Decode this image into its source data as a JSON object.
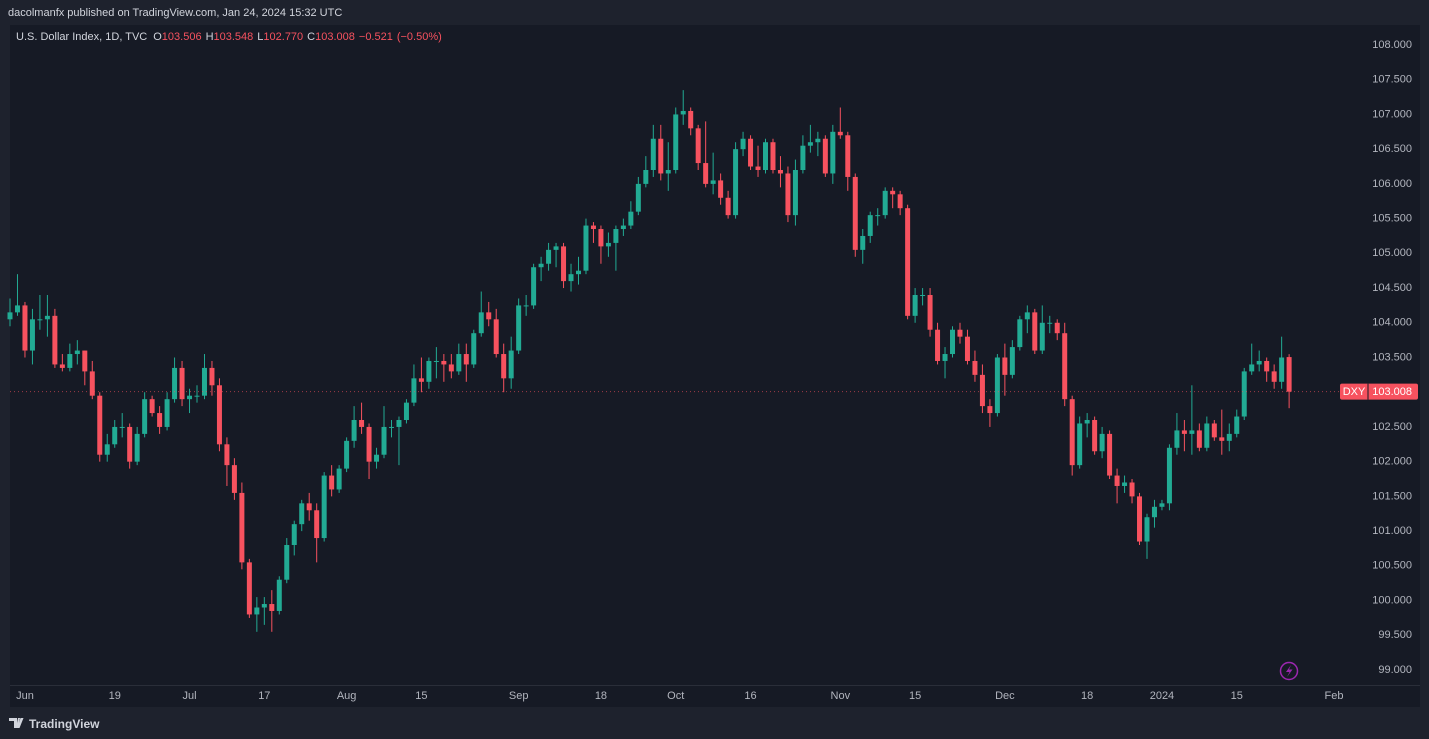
{
  "published": "dacolmanfx published on TradingView.com, Jan 24, 2024 15:32 UTC",
  "brand": "TradingView",
  "chart_data": {
    "type": "candlestick",
    "title": "U.S. Dollar Index, 1D, TVC",
    "symbol": "DXY",
    "ohlc_letters": [
      "O",
      "H",
      "L",
      "C"
    ],
    "change": {
      "value": -0.521,
      "label": "−0.521"
    },
    "change_percent": {
      "value": -0.5,
      "label": "(−0.50%)"
    },
    "up_color": "#22ab94",
    "down_color": "#f7525f",
    "grid": false,
    "ylim": [
      98.784,
      108.288
    ],
    "yticks": [
      {
        "value": 99,
        "label": "99.000"
      },
      {
        "value": 99.5,
        "label": "99.500"
      },
      {
        "value": 100,
        "label": "100.000"
      },
      {
        "value": 100.5,
        "label": "100.500"
      },
      {
        "value": 101,
        "label": "101.000"
      },
      {
        "value": 101.5,
        "label": "101.500"
      },
      {
        "value": 102,
        "label": "102.000"
      },
      {
        "value": 102.5,
        "label": "102.500"
      },
      {
        "value": 103,
        "label": "103.000"
      },
      {
        "value": 103.5,
        "label": "103.500"
      },
      {
        "value": 104,
        "label": "104.000"
      },
      {
        "value": 104.5,
        "label": "104.500"
      },
      {
        "value": 105,
        "label": "105.000"
      },
      {
        "value": 105.5,
        "label": "105.500"
      },
      {
        "value": 106,
        "label": "106.000"
      },
      {
        "value": 106.5,
        "label": "106.500"
      },
      {
        "value": 107,
        "label": "107.000"
      },
      {
        "value": 107.5,
        "label": "107.500"
      },
      {
        "value": 108,
        "label": "108.000"
      }
    ],
    "categories": [
      null,
      null,
      "Jun",
      null,
      null,
      null,
      null,
      null,
      null,
      null,
      null,
      null,
      null,
      null,
      "19",
      null,
      null,
      null,
      null,
      null,
      null,
      null,
      null,
      null,
      "Jul",
      null,
      null,
      null,
      null,
      null,
      null,
      null,
      null,
      null,
      "17",
      null,
      null,
      null,
      null,
      null,
      null,
      null,
      null,
      null,
      null,
      "Aug",
      null,
      null,
      null,
      null,
      null,
      null,
      null,
      null,
      null,
      "15",
      null,
      null,
      null,
      null,
      null,
      null,
      null,
      null,
      null,
      null,
      null,
      null,
      "Sep",
      null,
      null,
      null,
      null,
      null,
      null,
      null,
      null,
      null,
      null,
      "18",
      null,
      null,
      null,
      null,
      null,
      null,
      null,
      null,
      null,
      "Oct",
      null,
      null,
      null,
      null,
      null,
      null,
      null,
      null,
      null,
      "16",
      null,
      null,
      null,
      null,
      null,
      null,
      null,
      null,
      null,
      null,
      null,
      "Nov",
      null,
      null,
      null,
      null,
      null,
      null,
      null,
      null,
      null,
      "15",
      null,
      null,
      null,
      null,
      null,
      null,
      null,
      null,
      null,
      null,
      null,
      "Dec",
      null,
      null,
      null,
      null,
      null,
      null,
      null,
      null,
      null,
      null,
      "18",
      null,
      null,
      null,
      null,
      null,
      null,
      null,
      null,
      null,
      "2024",
      null,
      null,
      null,
      null,
      null,
      null,
      null,
      null,
      null,
      "15",
      null,
      null,
      null,
      null,
      null,
      null,
      null,
      null,
      null,
      null,
      null,
      null,
      "Feb"
    ],
    "open": [
      104.05,
      104.15,
      104.25,
      103.6,
      104.05,
      104.05,
      104.1,
      103.4,
      103.35,
      103.55,
      103.6,
      103.3,
      102.95,
      102.1,
      102.25,
      102.5,
      102.5,
      102.0,
      102.4,
      102.9,
      102.7,
      102.5,
      102.9,
      103.35,
      102.9,
      102.95,
      102.95,
      103.35,
      103.1,
      102.25,
      101.95,
      101.55,
      100.55,
      99.8,
      99.9,
      99.95,
      99.85,
      100.3,
      100.8,
      101.1,
      101.4,
      101.3,
      100.9,
      101.8,
      101.6,
      101.9,
      102.3,
      102.6,
      102.5,
      102.0,
      102.1,
      102.5,
      102.5,
      102.6,
      102.85,
      103.2,
      103.15,
      103.45,
      103.45,
      103.4,
      103.3,
      103.55,
      103.4,
      103.85,
      104.15,
      104.05,
      103.55,
      103.2,
      103.6,
      104.25,
      104.25,
      104.8,
      104.85,
      105.05,
      105.1,
      104.6,
      104.7,
      104.75,
      105.4,
      105.35,
      105.1,
      105.15,
      105.35,
      105.4,
      105.6,
      106.0,
      106.2,
      106.65,
      106.15,
      106.2,
      107.0,
      107.05,
      106.8,
      106.3,
      106.0,
      106.05,
      105.8,
      105.55,
      106.5,
      106.65,
      106.25,
      106.2,
      106.6,
      106.2,
      106.15,
      105.55,
      106.2,
      106.55,
      106.6,
      106.65,
      106.15,
      106.75,
      106.7,
      106.1,
      105.05,
      105.25,
      105.55,
      105.55,
      105.9,
      105.85,
      105.65,
      104.1,
      104.4,
      104.4,
      103.9,
      103.45,
      103.55,
      103.9,
      103.8,
      103.45,
      103.25,
      102.8,
      102.7,
      103.5,
      103.25,
      103.65,
      104.05,
      104.15,
      103.6,
      104.0,
      104.0,
      103.85,
      102.9,
      101.95,
      102.55,
      102.6,
      102.15,
      102.4,
      101.8,
      101.65,
      101.7,
      101.5,
      100.85,
      101.2,
      101.35,
      101.4,
      102.2,
      102.45,
      102.4,
      102.45,
      102.2,
      102.55,
      102.35,
      102.3,
      102.4,
      102.65,
      103.3,
      103.4,
      103.45,
      103.3,
      103.15,
      103.506,
      null,
      null,
      null,
      null,
      null,
      null
    ],
    "high": [
      104.35,
      104.7,
      104.3,
      104.2,
      104.4,
      104.4,
      104.2,
      103.55,
      103.7,
      103.75,
      103.6,
      103.45,
      103.0,
      102.4,
      102.6,
      102.7,
      102.55,
      102.5,
      103.0,
      102.95,
      102.8,
      103.0,
      103.5,
      103.45,
      103.05,
      103.1,
      103.55,
      103.45,
      103.2,
      102.35,
      102.05,
      101.7,
      100.6,
      100.05,
      100.05,
      100.15,
      100.35,
      100.9,
      101.15,
      101.45,
      101.55,
      101.4,
      101.85,
      101.95,
      101.95,
      102.35,
      102.8,
      102.85,
      102.55,
      102.2,
      102.8,
      102.6,
      102.65,
      102.9,
      103.4,
      103.5,
      103.5,
      103.65,
      103.55,
      103.55,
      103.7,
      103.7,
      103.9,
      104.45,
      104.3,
      104.2,
      103.7,
      103.8,
      104.35,
      104.4,
      104.85,
      104.95,
      105.15,
      105.15,
      105.15,
      104.85,
      104.95,
      105.5,
      105.45,
      105.4,
      105.3,
      105.4,
      105.5,
      105.75,
      106.1,
      106.4,
      106.85,
      106.85,
      106.6,
      107.1,
      107.35,
      107.1,
      106.85,
      106.9,
      106.45,
      106.15,
      105.9,
      106.6,
      106.75,
      106.7,
      106.55,
      106.65,
      106.65,
      106.4,
      106.25,
      106.35,
      106.7,
      106.85,
      106.75,
      106.7,
      106.85,
      107.1,
      106.75,
      106.15,
      105.35,
      105.6,
      105.65,
      105.95,
      105.95,
      105.9,
      105.7,
      104.5,
      104.5,
      104.5,
      104.0,
      103.65,
      103.95,
      104.0,
      103.9,
      103.6,
      103.4,
      102.9,
      103.55,
      103.7,
      103.75,
      104.1,
      104.25,
      104.2,
      104.25,
      104.1,
      104.05,
      104.0,
      102.95,
      102.65,
      102.7,
      102.65,
      102.5,
      102.45,
      101.9,
      101.8,
      101.75,
      101.55,
      101.25,
      101.45,
      101.45,
      102.25,
      102.7,
      102.6,
      103.1,
      102.55,
      102.65,
      102.6,
      102.75,
      102.55,
      102.75,
      103.35,
      103.7,
      103.6,
      103.5,
      103.4,
      103.8,
      103.548,
      null,
      null,
      null,
      null,
      null,
      null
    ],
    "low": [
      103.95,
      104.1,
      103.5,
      103.4,
      103.9,
      103.8,
      103.35,
      103.3,
      103.3,
      103.4,
      103.1,
      102.9,
      102.0,
      102.0,
      102.2,
      102.35,
      101.9,
      101.95,
      102.35,
      102.65,
      102.4,
      102.45,
      102.85,
      102.8,
      102.7,
      102.85,
      102.9,
      102.95,
      102.15,
      101.65,
      101.45,
      100.45,
      99.75,
      99.55,
      99.65,
      99.55,
      99.8,
      100.25,
      100.65,
      101.0,
      101.15,
      100.55,
      100.85,
      101.5,
      101.55,
      101.85,
      102.2,
      102.4,
      101.75,
      101.9,
      102.05,
      102.35,
      101.95,
      102.55,
      102.8,
      103.0,
      103.05,
      103.2,
      103.15,
      103.2,
      103.25,
      103.15,
      103.35,
      103.8,
      103.95,
      103.5,
      103.0,
      103.05,
      103.55,
      104.1,
      104.2,
      104.6,
      104.75,
      104.8,
      104.5,
      104.45,
      104.55,
      104.7,
      105.15,
      104.85,
      104.95,
      104.75,
      105.25,
      105.35,
      105.55,
      105.95,
      106.1,
      106.05,
      105.9,
      106.15,
      106.85,
      106.7,
      106.2,
      105.95,
      105.85,
      105.7,
      105.5,
      105.5,
      106.4,
      106.2,
      106.1,
      106.15,
      106.15,
      105.95,
      105.45,
      105.4,
      106.15,
      106.45,
      106.4,
      106.1,
      106.0,
      106.65,
      105.9,
      104.95,
      104.85,
      105.15,
      105.4,
      105.5,
      105.65,
      105.55,
      104.05,
      104.0,
      104.25,
      103.8,
      103.4,
      103.2,
      103.5,
      103.7,
      103.4,
      103.15,
      102.7,
      102.5,
      102.65,
      102.95,
      103.2,
      103.6,
      103.85,
      103.55,
      103.55,
      103.85,
      103.75,
      102.8,
      101.8,
      101.9,
      102.35,
      102.1,
      102.05,
      101.75,
      101.4,
      101.55,
      101.4,
      100.8,
      100.6,
      101.05,
      101.3,
      101.3,
      102.1,
      102.15,
      102.1,
      102.15,
      102.15,
      102.3,
      102.1,
      102.15,
      102.35,
      102.6,
      103.25,
      103.3,
      103.15,
      103.05,
      103.05,
      {
        "value": 102.77,
        "label": "102.770"
      },
      null,
      null,
      null,
      null,
      null,
      null
    ],
    "close": [
      104.15,
      104.25,
      103.6,
      104.05,
      104.05,
      104.1,
      103.4,
      103.35,
      103.55,
      103.6,
      103.3,
      102.95,
      102.1,
      102.25,
      102.5,
      102.5,
      102.0,
      102.4,
      102.9,
      102.7,
      102.5,
      102.9,
      103.35,
      102.9,
      102.95,
      102.95,
      103.35,
      103.1,
      102.25,
      101.95,
      101.55,
      100.55,
      99.8,
      99.9,
      99.95,
      99.85,
      100.3,
      100.8,
      101.1,
      101.4,
      101.3,
      100.9,
      101.8,
      101.6,
      101.9,
      102.3,
      102.6,
      102.5,
      102.0,
      102.1,
      102.5,
      102.5,
      102.6,
      102.85,
      103.2,
      103.15,
      103.45,
      103.45,
      103.4,
      103.3,
      103.55,
      103.4,
      103.85,
      104.15,
      104.05,
      103.55,
      103.2,
      103.6,
      104.25,
      104.25,
      104.8,
      104.85,
      105.05,
      105.1,
      104.6,
      104.7,
      104.75,
      105.4,
      105.35,
      105.1,
      105.15,
      105.35,
      105.4,
      105.6,
      106.0,
      106.2,
      106.65,
      106.15,
      106.2,
      107.0,
      107.05,
      106.8,
      106.3,
      106.0,
      106.05,
      105.8,
      105.55,
      106.5,
      106.65,
      106.25,
      106.2,
      106.6,
      106.2,
      106.15,
      105.55,
      106.2,
      106.55,
      106.6,
      106.65,
      106.15,
      106.75,
      106.7,
      106.1,
      105.05,
      105.25,
      105.55,
      105.55,
      105.9,
      105.85,
      105.65,
      104.1,
      104.4,
      104.4,
      103.9,
      103.45,
      103.55,
      103.9,
      103.8,
      103.45,
      103.25,
      102.8,
      102.7,
      103.5,
      103.25,
      103.65,
      104.05,
      104.15,
      103.6,
      104.0,
      104.0,
      103.85,
      102.9,
      101.95,
      102.55,
      102.6,
      102.15,
      102.4,
      101.8,
      101.65,
      101.7,
      101.5,
      100.85,
      101.2,
      101.35,
      101.4,
      102.2,
      102.45,
      102.4,
      102.45,
      102.2,
      102.55,
      102.35,
      102.3,
      102.4,
      102.65,
      103.3,
      103.4,
      103.45,
      103.3,
      103.15,
      103.5,
      103.008,
      null,
      null,
      null,
      null,
      null,
      null
    ]
  }
}
